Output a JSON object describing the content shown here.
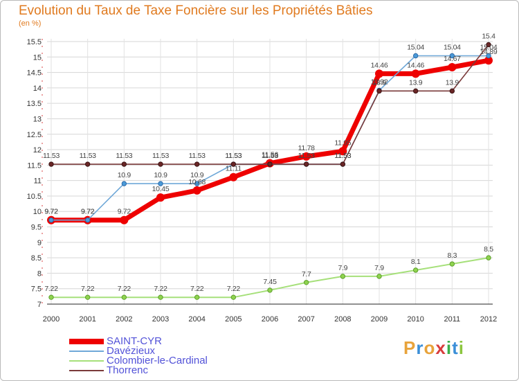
{
  "chart_data": {
    "type": "line",
    "title": "Evolution du Taux de Taxe Foncière sur les Propriétés Bâties",
    "subtitle": "(en %)",
    "x": [
      "2000",
      "2001",
      "2002",
      "2003",
      "2004",
      "2005",
      "2006",
      "2007",
      "2008",
      "2009",
      "2010",
      "2011",
      "2012"
    ],
    "ylim": [
      7,
      15.5
    ],
    "yticks": [
      "7",
      "7.5",
      "8",
      "8.5",
      "9",
      "9.5",
      "10",
      "10.5",
      "11",
      "11.5",
      "12",
      "12.5",
      "13",
      "13.5",
      "14",
      "14.5",
      "15",
      "15.5"
    ],
    "grid": true,
    "series": [
      {
        "name": "SAINT-CYR",
        "color": "#ee0000",
        "values": [
          9.72,
          9.72,
          9.72,
          10.45,
          10.68,
          11.11,
          11.56,
          11.78,
          11.95,
          14.46,
          14.46,
          14.67,
          14.89
        ]
      },
      {
        "name": "Davézieux",
        "color": "#6fa8d8",
        "values": [
          9.72,
          9.72,
          10.9,
          10.9,
          10.9,
          11.53,
          11.53,
          11.53,
          11.53,
          13.92,
          15.04,
          15.04,
          15.04
        ]
      },
      {
        "name": "Colombier-le-Cardinal",
        "color": "#a6e07a",
        "values": [
          7.22,
          7.22,
          7.22,
          7.22,
          7.22,
          7.22,
          7.45,
          7.7,
          7.9,
          7.9,
          8.1,
          8.3,
          8.5
        ]
      },
      {
        "name": "Thorrenc",
        "color": "#7a3a3a",
        "values": [
          11.53,
          11.53,
          11.53,
          11.53,
          11.53,
          11.53,
          11.53,
          11.53,
          11.53,
          13.9,
          13.9,
          13.9,
          15.4
        ]
      }
    ],
    "data_labels": {
      "SAINT-CYR": [
        "9.72",
        "9.72",
        "9.72",
        "10.45",
        "10.68",
        "11.11",
        "11.56",
        "11.78",
        "11.95",
        "14.46",
        "14.46",
        "14.67",
        "14.89"
      ],
      "Davézieux": [
        "9.72",
        "9.72",
        "10.9",
        "10.9",
        "10.9",
        "11.53",
        "11.53",
        "11.53",
        "11.53",
        "13.92",
        "15.04",
        "15.04",
        "15.04"
      ],
      "Colombier-le-Cardinal": [
        "7.22",
        "7.22",
        "7.22",
        "7.22",
        "7.22",
        "7.22",
        "7.45",
        "7.7",
        "7.9",
        "7.9",
        "8.1",
        "8.3",
        "8.5"
      ],
      "Thorrenc": [
        "11.53",
        "11.53",
        "11.53",
        "11.53",
        "11.53",
        "11.53",
        "11.53",
        "11.53",
        "11.53",
        "13.9",
        "13.9",
        "13.9",
        "15.4"
      ]
    },
    "legend_position": "bottom-left"
  },
  "brand": {
    "letters": [
      "P",
      "r",
      "o",
      "x",
      "i",
      "t",
      "i"
    ],
    "colors": [
      "#e8a33b",
      "#3b8fd8",
      "#e8a33b",
      "#d83b3b",
      "#3bb04a",
      "#3b8fd8",
      "#8cc63f"
    ]
  }
}
